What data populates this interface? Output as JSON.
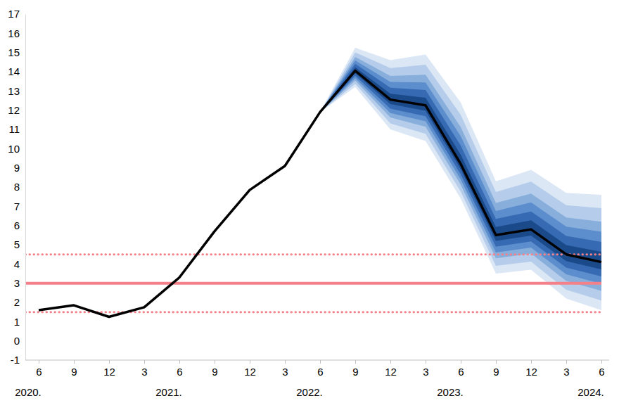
{
  "chart_data": {
    "type": "line",
    "categories": [
      "6",
      "9",
      "12",
      "3",
      "6",
      "9",
      "12",
      "3",
      "6",
      "9",
      "12",
      "3",
      "6",
      "9",
      "12",
      "3",
      "6"
    ],
    "year_labels": [
      "2020.",
      null,
      null,
      null,
      "2021.",
      null,
      null,
      null,
      "2022.",
      null,
      null,
      null,
      "2023.",
      null,
      null,
      null,
      "2024."
    ],
    "series": [
      {
        "color": "#000000",
        "line_style": "solid",
        "values": [
          1.6,
          1.85,
          1.25,
          1.75,
          3.3,
          5.7,
          7.85,
          9.1,
          11.9,
          14.05,
          12.55,
          12.25,
          9.2,
          5.5,
          5.8,
          4.5,
          4.1
        ]
      }
    ],
    "fan_bands": [
      {
        "color": "#dce7f5",
        "lower": [
          null,
          null,
          null,
          null,
          null,
          null,
          null,
          null,
          11.9,
          13.2,
          11.0,
          10.4,
          7.4,
          3.5,
          3.7,
          2.2,
          1.6
        ],
        "upper": [
          null,
          null,
          null,
          null,
          null,
          null,
          null,
          null,
          11.9,
          15.25,
          14.6,
          14.9,
          12.4,
          8.3,
          8.9,
          7.7,
          7.6
        ]
      },
      {
        "color": "#b5cdeb",
        "lower": [
          null,
          null,
          null,
          null,
          null,
          null,
          null,
          null,
          11.9,
          13.37,
          11.31,
          10.77,
          7.76,
          3.9,
          4.12,
          2.66,
          2.1
        ],
        "upper": [
          null,
          null,
          null,
          null,
          null,
          null,
          null,
          null,
          11.9,
          15.01,
          14.19,
          14.37,
          11.76,
          7.74,
          8.28,
          7.06,
          6.9
        ]
      },
      {
        "color": "#88aedc",
        "lower": [
          null,
          null,
          null,
          null,
          null,
          null,
          null,
          null,
          11.9,
          13.54,
          11.62,
          11.14,
          8.12,
          4.3,
          4.54,
          3.12,
          2.6
        ],
        "upper": [
          null,
          null,
          null,
          null,
          null,
          null,
          null,
          null,
          11.9,
          14.77,
          13.78,
          13.84,
          11.12,
          7.18,
          7.66,
          6.42,
          6.2
        ]
      },
      {
        "color": "#5c8dcc",
        "lower": [
          null,
          null,
          null,
          null,
          null,
          null,
          null,
          null,
          11.9,
          13.67,
          11.85,
          11.42,
          8.39,
          4.6,
          4.85,
          3.46,
          2.97
        ],
        "upper": [
          null,
          null,
          null,
          null,
          null,
          null,
          null,
          null,
          11.9,
          14.59,
          13.47,
          13.44,
          10.64,
          6.76,
          7.2,
          5.94,
          5.68
        ]
      },
      {
        "color": "#366ab2",
        "lower": [
          null,
          null,
          null,
          null,
          null,
          null,
          null,
          null,
          11.9,
          13.79,
          12.08,
          11.69,
          8.66,
          4.9,
          5.17,
          3.81,
          3.35
        ],
        "upper": [
          null,
          null,
          null,
          null,
          null,
          null,
          null,
          null,
          11.9,
          14.41,
          13.17,
          13.05,
          10.16,
          6.34,
          6.73,
          5.46,
          5.15
        ]
      },
      {
        "color": "#1b4a8b",
        "lower": [
          null,
          null,
          null,
          null,
          null,
          null,
          null,
          null,
          11.9,
          13.92,
          12.32,
          11.97,
          8.93,
          5.2,
          5.48,
          4.15,
          3.72
        ],
        "upper": [
          null,
          null,
          null,
          null,
          null,
          null,
          null,
          null,
          11.9,
          14.23,
          12.86,
          12.65,
          9.68,
          5.92,
          6.27,
          4.98,
          4.63
        ]
      }
    ],
    "reference_lines": [
      {
        "value": 3,
        "color": "#f4808a",
        "line_style": "solid"
      },
      {
        "value": 1.5,
        "color": "#f4808a",
        "line_style": "dotted"
      },
      {
        "value": 4.5,
        "color": "#f4808a",
        "line_style": "dotted"
      }
    ],
    "ylim": [
      -1,
      17
    ],
    "yticks": [
      -1,
      0,
      1,
      2,
      3,
      4,
      5,
      6,
      7,
      8,
      9,
      10,
      11,
      12,
      13,
      14,
      15,
      16,
      17
    ],
    "grid": false
  }
}
